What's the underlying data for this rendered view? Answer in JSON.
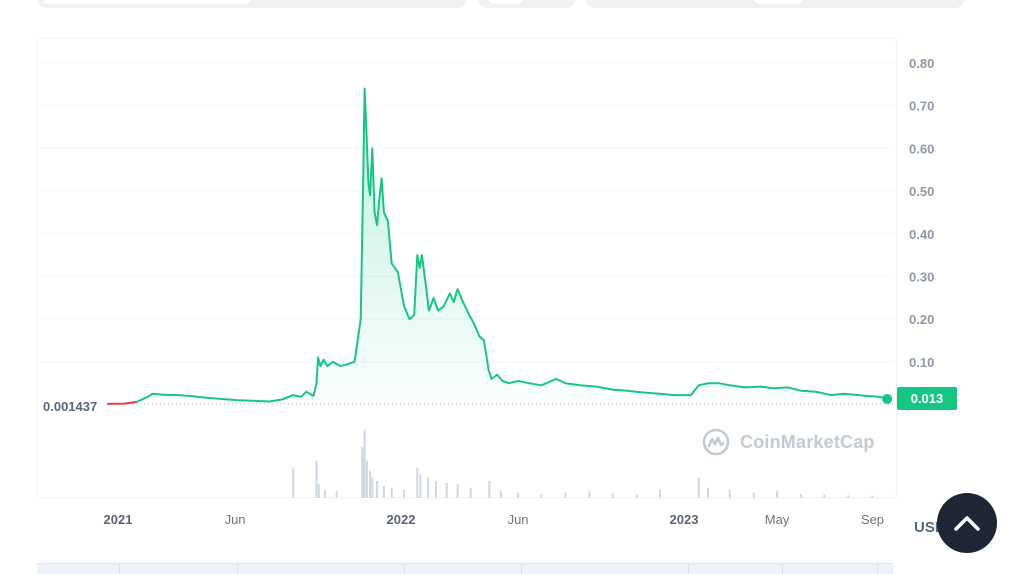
{
  "chart_data": {
    "type": "area",
    "title": "",
    "y_axis": {
      "position": "right",
      "ticks": [
        "0.10",
        "0.20",
        "0.30",
        "0.40",
        "0.50",
        "0.60",
        "0.70",
        "0.80"
      ],
      "ylim": [
        0,
        0.8
      ]
    },
    "x_axis": {
      "ticks": [
        {
          "label": "2021",
          "date": "2021-01-01",
          "kind": "year"
        },
        {
          "label": "Jun",
          "date": "2021-06-01",
          "kind": "month"
        },
        {
          "label": "2022",
          "date": "2022-01-01",
          "kind": "year"
        },
        {
          "label": "Jun",
          "date": "2022-06-01",
          "kind": "month"
        },
        {
          "label": "2023",
          "date": "2023-01-01",
          "kind": "year"
        },
        {
          "label": "May",
          "date": "2023-05-01",
          "kind": "month"
        },
        {
          "label": "Sep",
          "date": "2023-09-01",
          "kind": "month"
        }
      ]
    },
    "series": [
      {
        "color_down": "#ea3943",
        "color_up": "#16c784",
        "points": [
          [
            "2020-12-18",
            0.0014
          ],
          [
            "2021-01-10",
            0.002
          ],
          [
            "2021-01-25",
            0.006
          ],
          [
            "2021-02-05",
            0.015
          ],
          [
            "2021-02-15",
            0.025
          ],
          [
            "2021-03-01",
            0.023
          ],
          [
            "2021-03-20",
            0.022
          ],
          [
            "2021-04-05",
            0.02
          ],
          [
            "2021-04-25",
            0.016
          ],
          [
            "2021-05-15",
            0.013
          ],
          [
            "2021-06-05",
            0.01
          ],
          [
            "2021-06-25",
            0.009
          ],
          [
            "2021-07-15",
            0.007
          ],
          [
            "2021-08-01",
            0.012
          ],
          [
            "2021-08-15",
            0.022
          ],
          [
            "2021-08-25",
            0.018
          ],
          [
            "2021-09-01",
            0.03
          ],
          [
            "2021-09-10",
            0.02
          ],
          [
            "2021-09-14",
            0.05
          ],
          [
            "2021-09-16",
            0.11
          ],
          [
            "2021-09-19",
            0.09
          ],
          [
            "2021-09-23",
            0.105
          ],
          [
            "2021-09-28",
            0.09
          ],
          [
            "2021-10-05",
            0.1
          ],
          [
            "2021-10-15",
            0.09
          ],
          [
            "2021-10-25",
            0.095
          ],
          [
            "2021-11-02",
            0.1
          ],
          [
            "2021-11-10",
            0.2
          ],
          [
            "2021-11-13",
            0.5
          ],
          [
            "2021-11-15",
            0.74
          ],
          [
            "2021-11-17",
            0.66
          ],
          [
            "2021-11-20",
            0.52
          ],
          [
            "2021-11-22",
            0.49
          ],
          [
            "2021-11-25",
            0.6
          ],
          [
            "2021-11-28",
            0.45
          ],
          [
            "2021-12-01",
            0.42
          ],
          [
            "2021-12-04",
            0.48
          ],
          [
            "2021-12-07",
            0.53
          ],
          [
            "2021-12-10",
            0.45
          ],
          [
            "2021-12-15",
            0.43
          ],
          [
            "2021-12-20",
            0.33
          ],
          [
            "2021-12-28",
            0.31
          ],
          [
            "2022-01-05",
            0.23
          ],
          [
            "2022-01-12",
            0.2
          ],
          [
            "2022-01-18",
            0.21
          ],
          [
            "2022-01-22",
            0.35
          ],
          [
            "2022-01-25",
            0.32
          ],
          [
            "2022-01-28",
            0.35
          ],
          [
            "2022-02-02",
            0.28
          ],
          [
            "2022-02-06",
            0.22
          ],
          [
            "2022-02-12",
            0.25
          ],
          [
            "2022-02-18",
            0.22
          ],
          [
            "2022-02-25",
            0.23
          ],
          [
            "2022-03-05",
            0.26
          ],
          [
            "2022-03-10",
            0.24
          ],
          [
            "2022-03-15",
            0.27
          ],
          [
            "2022-03-22",
            0.24
          ],
          [
            "2022-03-30",
            0.21
          ],
          [
            "2022-04-05",
            0.19
          ],
          [
            "2022-04-12",
            0.16
          ],
          [
            "2022-04-18",
            0.15
          ],
          [
            "2022-04-24",
            0.08
          ],
          [
            "2022-04-28",
            0.06
          ],
          [
            "2022-05-05",
            0.07
          ],
          [
            "2022-05-12",
            0.055
          ],
          [
            "2022-05-20",
            0.05
          ],
          [
            "2022-06-01",
            0.055
          ],
          [
            "2022-06-15",
            0.05
          ],
          [
            "2022-07-01",
            0.045
          ],
          [
            "2022-07-20",
            0.06
          ],
          [
            "2022-08-01",
            0.05
          ],
          [
            "2022-08-20",
            0.045
          ],
          [
            "2022-09-10",
            0.042
          ],
          [
            "2022-10-01",
            0.035
          ],
          [
            "2022-10-20",
            0.032
          ],
          [
            "2022-11-10",
            0.028
          ],
          [
            "2022-12-01",
            0.025
          ],
          [
            "2022-12-20",
            0.022
          ],
          [
            "2023-01-10",
            0.022
          ],
          [
            "2023-01-20",
            0.045
          ],
          [
            "2023-02-01",
            0.05
          ],
          [
            "2023-02-15",
            0.05
          ],
          [
            "2023-03-01",
            0.045
          ],
          [
            "2023-03-20",
            0.04
          ],
          [
            "2023-04-10",
            0.042
          ],
          [
            "2023-04-25",
            0.038
          ],
          [
            "2023-05-15",
            0.04
          ],
          [
            "2023-06-01",
            0.032
          ],
          [
            "2023-06-20",
            0.03
          ],
          [
            "2023-07-10",
            0.022
          ],
          [
            "2023-07-25",
            0.025
          ],
          [
            "2023-08-10",
            0.023
          ],
          [
            "2023-08-25",
            0.02
          ],
          [
            "2023-09-10",
            0.018
          ],
          [
            "2023-09-20",
            0.013
          ]
        ]
      }
    ],
    "volume": [
      [
        "2021-08-15",
        0.45
      ],
      [
        "2021-09-14",
        0.55
      ],
      [
        "2021-09-17",
        0.2
      ],
      [
        "2021-09-25",
        0.12
      ],
      [
        "2021-10-10",
        0.1
      ],
      [
        "2021-11-12",
        0.75
      ],
      [
        "2021-11-14",
        0.6
      ],
      [
        "2021-11-15",
        1.0
      ],
      [
        "2021-11-18",
        0.55
      ],
      [
        "2021-11-22",
        0.4
      ],
      [
        "2021-11-25",
        0.3
      ],
      [
        "2021-12-01",
        0.25
      ],
      [
        "2021-12-10",
        0.18
      ],
      [
        "2021-12-20",
        0.15
      ],
      [
        "2022-01-05",
        0.12
      ],
      [
        "2022-01-22",
        0.45
      ],
      [
        "2022-01-26",
        0.35
      ],
      [
        "2022-02-05",
        0.3
      ],
      [
        "2022-02-15",
        0.25
      ],
      [
        "2022-03-01",
        0.22
      ],
      [
        "2022-03-15",
        0.2
      ],
      [
        "2022-04-01",
        0.15
      ],
      [
        "2022-04-25",
        0.25
      ],
      [
        "2022-05-10",
        0.1
      ],
      [
        "2022-06-01",
        0.08
      ],
      [
        "2022-07-01",
        0.06
      ],
      [
        "2022-08-01",
        0.08
      ],
      [
        "2022-09-01",
        0.1
      ],
      [
        "2022-10-01",
        0.07
      ],
      [
        "2022-11-01",
        0.05
      ],
      [
        "2022-12-01",
        0.12
      ],
      [
        "2023-01-20",
        0.3
      ],
      [
        "2023-02-01",
        0.15
      ],
      [
        "2023-03-01",
        0.12
      ],
      [
        "2023-04-01",
        0.08
      ],
      [
        "2023-05-01",
        0.1
      ],
      [
        "2023-06-01",
        0.06
      ],
      [
        "2023-07-01",
        0.05
      ],
      [
        "2023-08-01",
        0.04
      ],
      [
        "2023-09-01",
        0.03
      ]
    ],
    "grid": true,
    "start_price_label": "0.001437",
    "current_price": "0.013",
    "current_price_value": 0.013,
    "line_color": "#16c784"
  },
  "watermark": {
    "text": "CoinMarketCap"
  },
  "currency": {
    "label": "USD"
  },
  "scroll_top": {
    "icon": "chevron-up-icon"
  }
}
